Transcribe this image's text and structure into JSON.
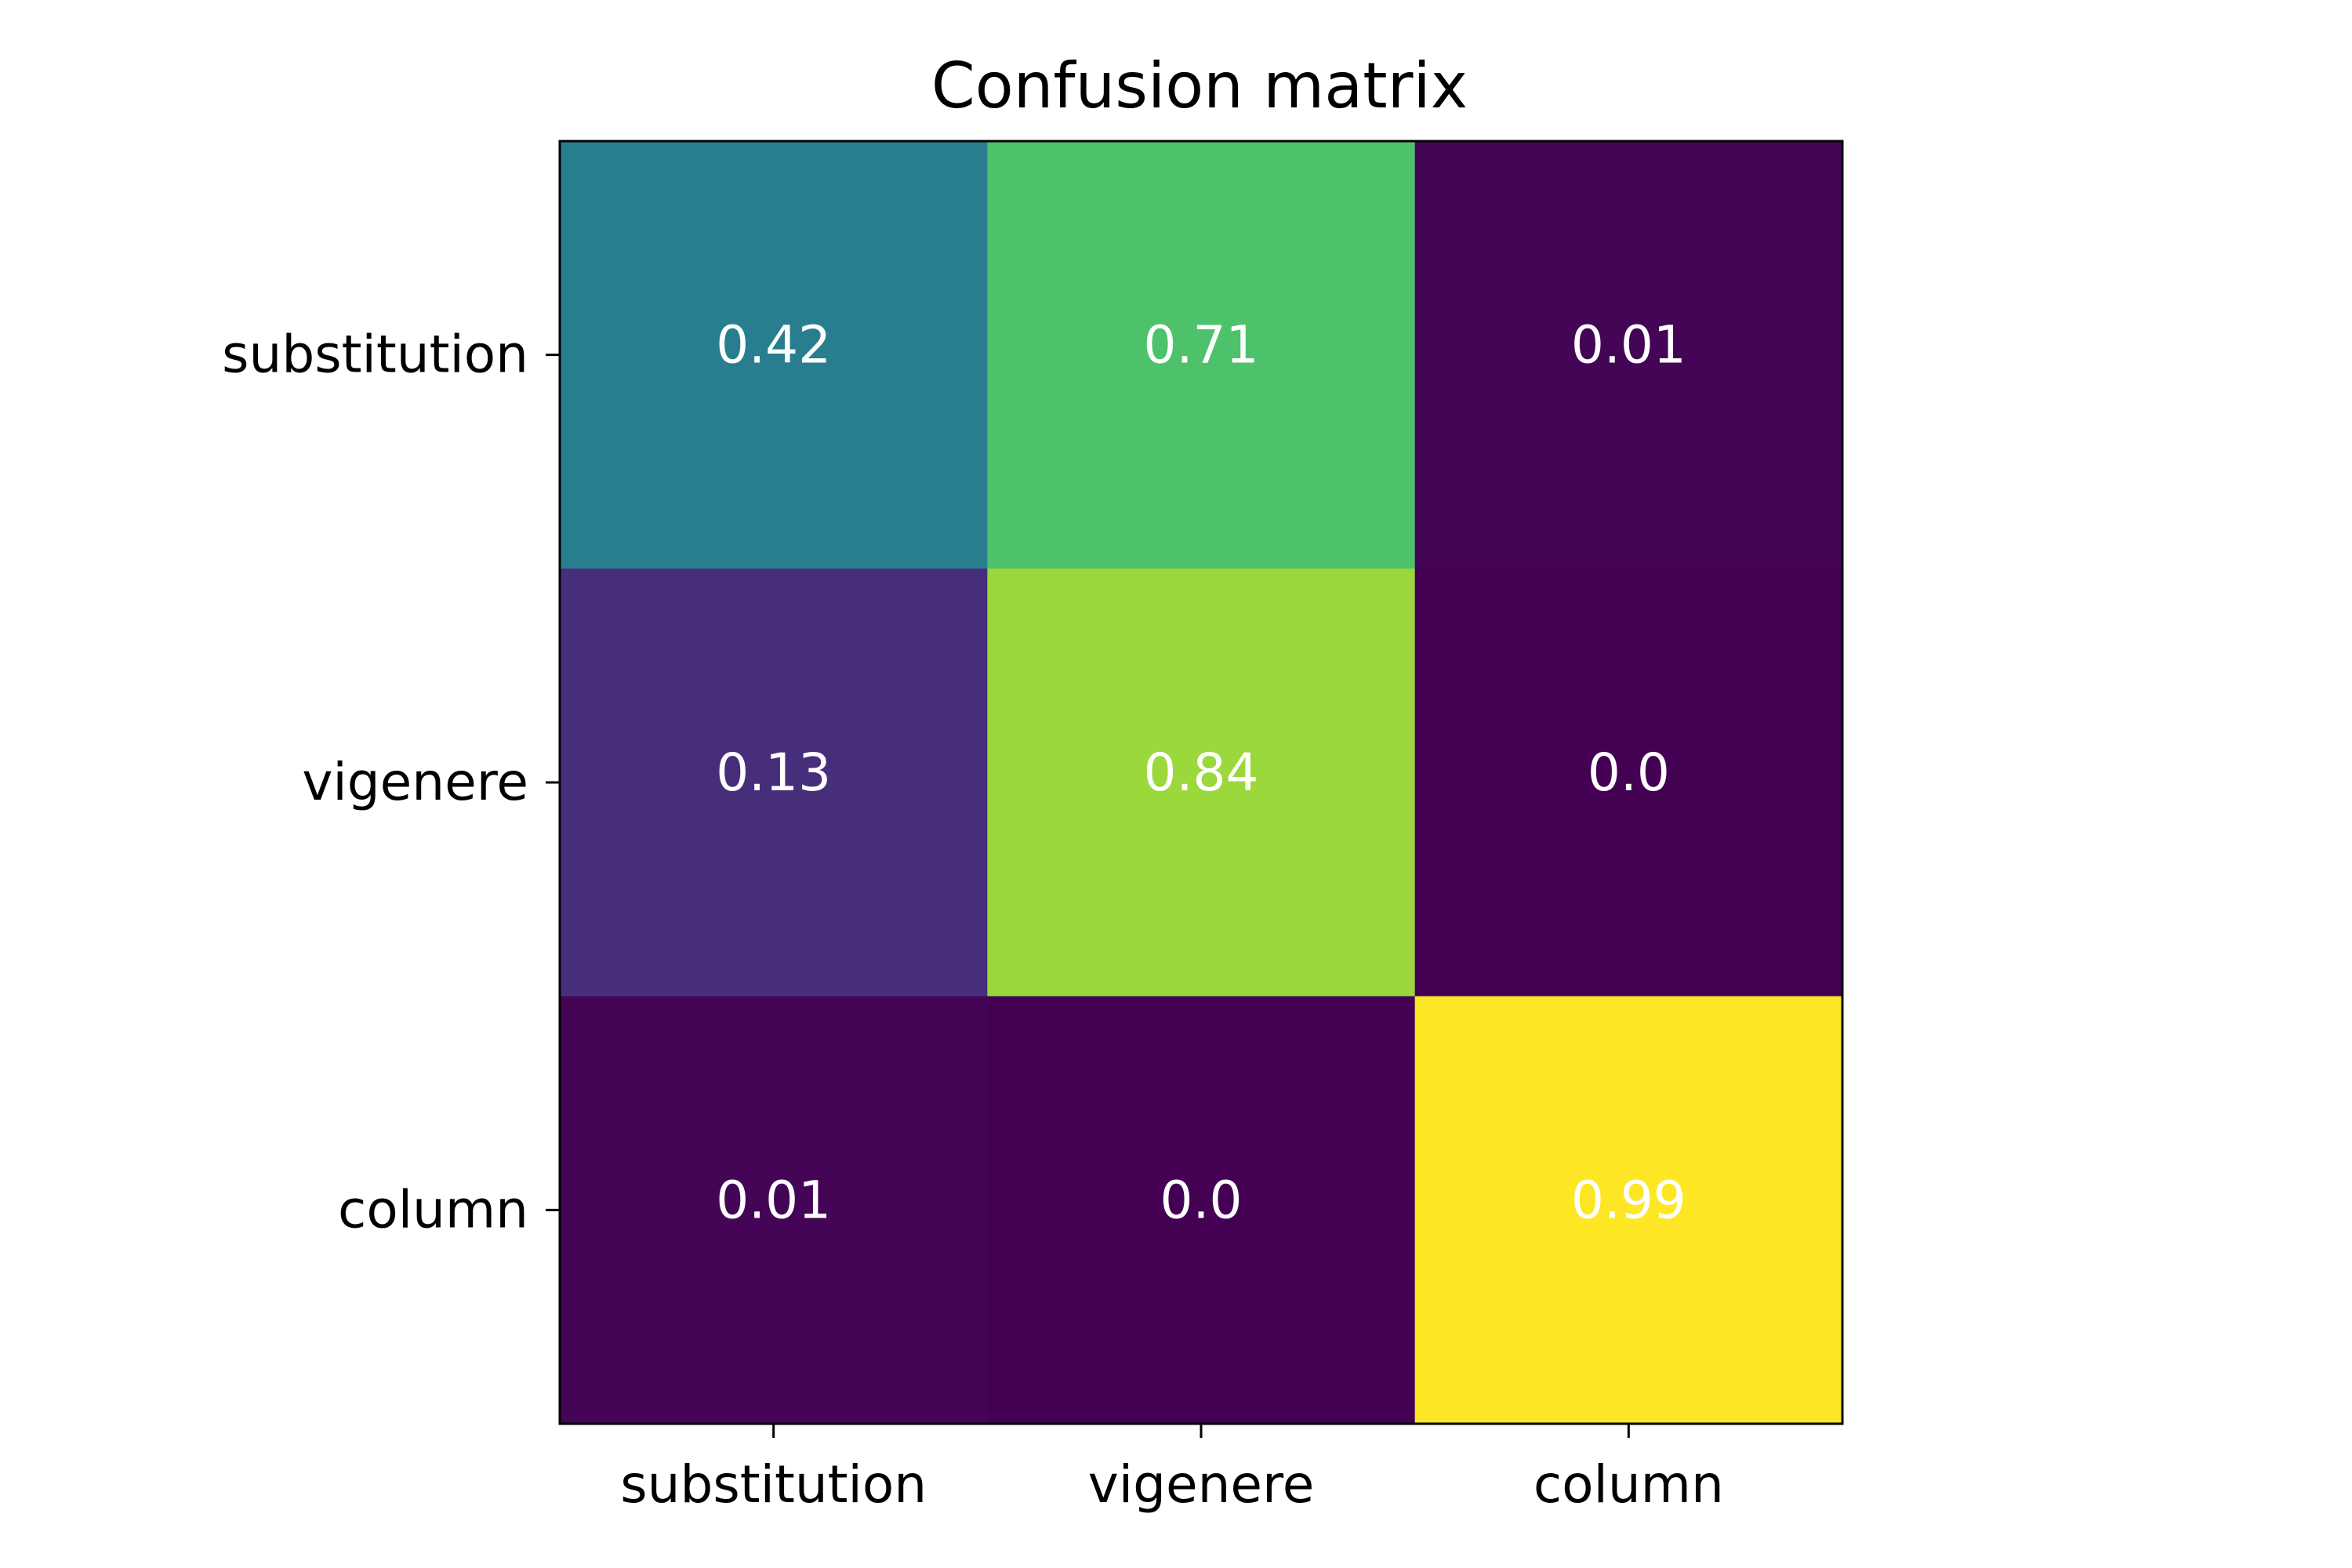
{
  "chart_data": {
    "type": "heatmap",
    "title": "Confusion matrix",
    "xlabel": "",
    "ylabel": "",
    "x_categories": [
      "substitution",
      "vigenere",
      "column"
    ],
    "y_categories": [
      "substitution",
      "vigenere",
      "column"
    ],
    "values": [
      [
        0.42,
        0.71,
        0.01
      ],
      [
        0.13,
        0.84,
        0.0
      ],
      [
        0.01,
        0.0,
        0.99
      ]
    ],
    "value_labels": [
      [
        "0.42",
        "0.71",
        "0.01"
      ],
      [
        "0.13",
        "0.84",
        "0.0"
      ],
      [
        "0.01",
        "0.0",
        "0.99"
      ]
    ],
    "colormap": "viridis",
    "value_range": [
      0.0,
      0.99
    ],
    "cell_label_color": "#ffffff",
    "grid": false
  }
}
